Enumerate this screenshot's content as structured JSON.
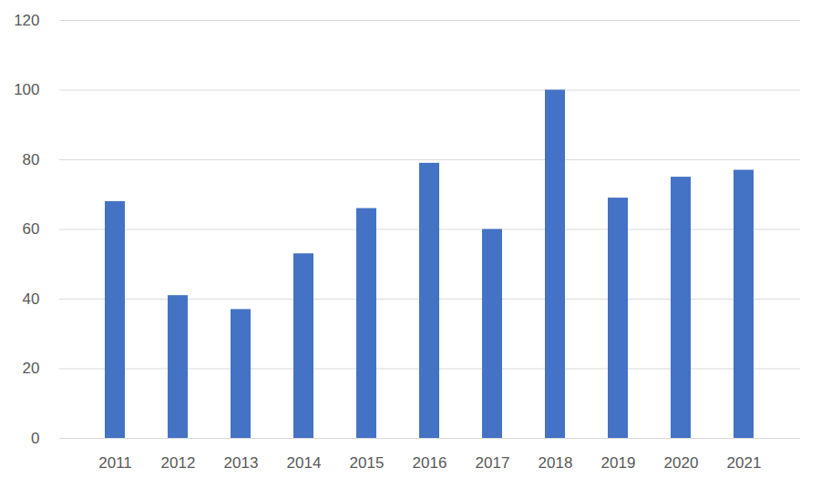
{
  "chart_data": {
    "type": "bar",
    "categories": [
      "2011",
      "2012",
      "2013",
      "2014",
      "2015",
      "2016",
      "2017",
      "2018",
      "2019",
      "2020",
      "2021"
    ],
    "values": [
      68,
      41,
      37,
      53,
      66,
      79,
      60,
      100,
      69,
      75,
      77
    ],
    "color": "#4472c4",
    "ylim": [
      0,
      120
    ],
    "yticks": [
      0,
      20,
      40,
      60,
      80,
      100,
      120
    ],
    "grid": true
  }
}
